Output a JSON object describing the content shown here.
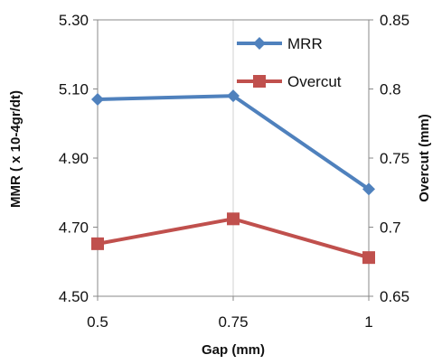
{
  "chart_data": {
    "type": "line",
    "x": [
      "0.5",
      "0.75",
      "1"
    ],
    "xlabel": "Gap (mm)",
    "ylabel": "MMR ( x 10-4gr/dt)",
    "y2label": "Overcut (mm)",
    "ylim": [
      4.5,
      5.3
    ],
    "y2lim": [
      0.65,
      0.85
    ],
    "yticks": [
      "4.50",
      "4.70",
      "4.90",
      "5.10",
      "5.30"
    ],
    "y2ticks": [
      "0.65",
      "0.7",
      "0.75",
      "0.8",
      "0.85"
    ],
    "grid": "vertical",
    "legend_position": "top-right",
    "series": [
      {
        "name": "MRR",
        "axis": "left",
        "marker": "diamond",
        "color": "#4f81bd",
        "values": [
          5.07,
          5.08,
          4.81
        ]
      },
      {
        "name": "Overcut",
        "axis": "right",
        "marker": "square",
        "color": "#c0504d",
        "values": [
          0.688,
          0.706,
          0.678
        ]
      }
    ]
  }
}
